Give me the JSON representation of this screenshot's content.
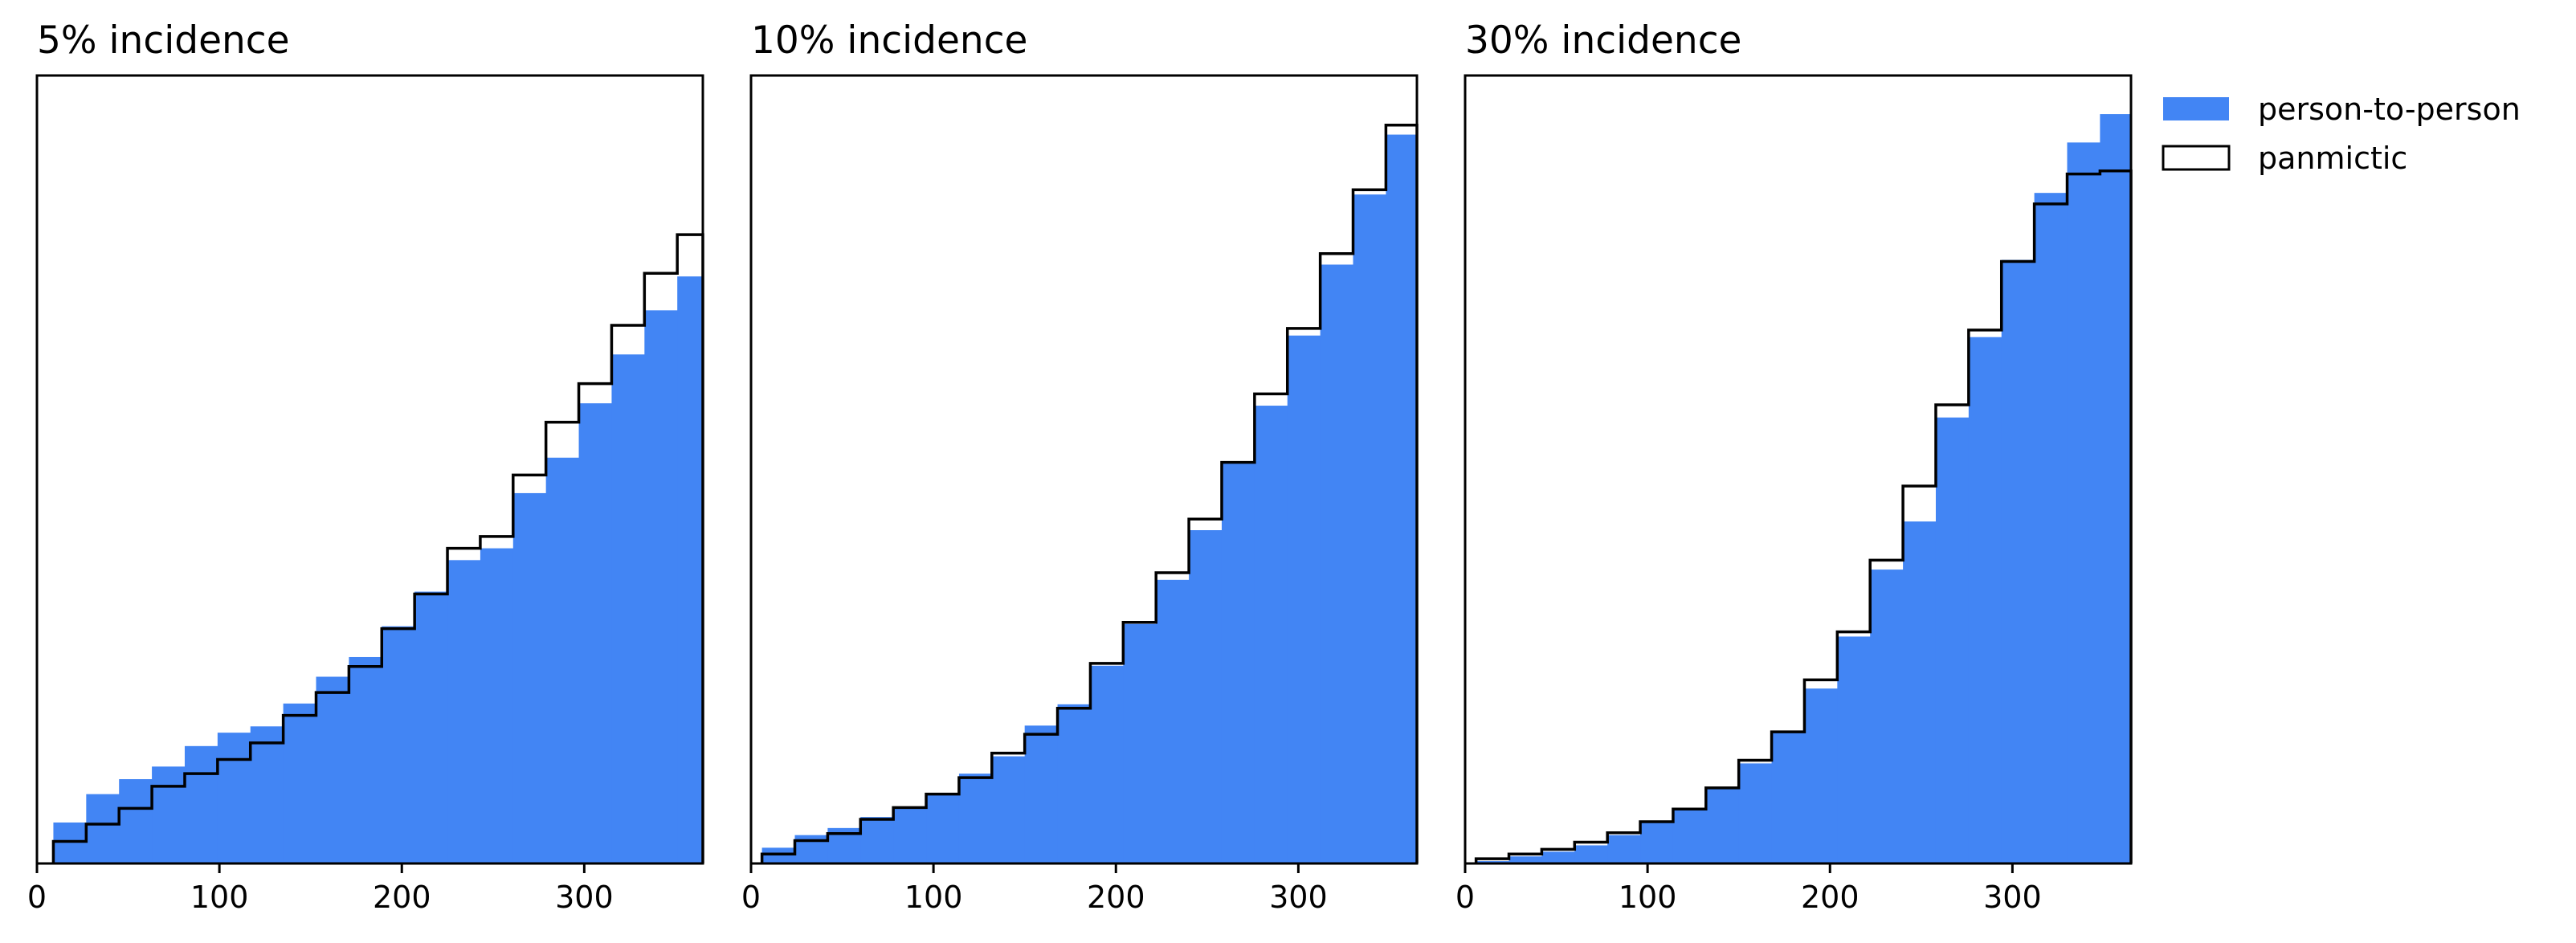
{
  "colors": {
    "fill_series": "#4285F4",
    "outline_series": "#000000",
    "background": "#FFFFFF"
  },
  "legend": {
    "placement": "top-right, outside the plots",
    "entries": [
      {
        "label": "person-to-person",
        "style": "filled",
        "color": "#4285F4"
      },
      {
        "label": "panmictic",
        "style": "step-outline",
        "color": "#000000"
      }
    ]
  },
  "chart_data": [
    {
      "type": "histogram",
      "title": "5% incidence",
      "xlabel": "",
      "ylabel": "",
      "xlim": [
        0,
        365
      ],
      "ylim": [
        0,
        100
      ],
      "xticks": [
        0,
        100,
        200,
        300
      ],
      "y_tick_labels_shown": false,
      "bin_edges": [
        9,
        27,
        45,
        63,
        81,
        99,
        117,
        135,
        153,
        171,
        189,
        207,
        225,
        243,
        261,
        279,
        297,
        315,
        333,
        351,
        365
      ],
      "series": [
        {
          "name": "person-to-person",
          "style": "filled",
          "values": [
            5.2,
            8.8,
            10.7,
            12.3,
            14.9,
            16.6,
            17.4,
            20.3,
            23.7,
            26.2,
            30.1,
            34.5,
            38.5,
            40.0,
            47.0,
            51.5,
            58.4,
            64.6,
            70.2,
            74.5
          ]
        },
        {
          "name": "panmictic",
          "style": "step",
          "values": [
            2.8,
            5.0,
            7.0,
            9.8,
            11.4,
            13.2,
            15.3,
            18.8,
            21.7,
            25.0,
            29.8,
            34.2,
            40.0,
            41.5,
            49.3,
            56.0,
            60.9,
            68.3,
            74.9,
            79.8
          ]
        }
      ]
    },
    {
      "type": "histogram",
      "title": "10% incidence",
      "xlabel": "",
      "ylabel": "",
      "xlim": [
        0,
        365
      ],
      "ylim": [
        0,
        100
      ],
      "xticks": [
        0,
        100,
        200,
        300
      ],
      "y_tick_labels_shown": false,
      "bin_edges": [
        6,
        24,
        42,
        60,
        78,
        96,
        114,
        132,
        150,
        168,
        186,
        204,
        222,
        240,
        258,
        276,
        294,
        312,
        330,
        348,
        365
      ],
      "series": [
        {
          "name": "person-to-person",
          "style": "filled",
          "values": [
            2.0,
            3.6,
            4.5,
            5.9,
            7.2,
            8.9,
            11.4,
            13.6,
            17.5,
            20.2,
            25.1,
            30.4,
            36.0,
            42.3,
            50.8,
            58.1,
            67.0,
            76.0,
            84.9,
            92.5
          ]
        },
        {
          "name": "panmictic",
          "style": "step",
          "values": [
            1.2,
            2.9,
            3.8,
            5.6,
            7.1,
            8.8,
            10.9,
            14.0,
            16.4,
            19.7,
            25.4,
            30.6,
            36.9,
            43.7,
            50.9,
            59.6,
            67.9,
            77.4,
            85.5,
            93.7
          ]
        }
      ]
    },
    {
      "type": "histogram",
      "title": "30% incidence",
      "xlabel": "",
      "ylabel": "",
      "xlim": [
        0,
        365
      ],
      "ylim": [
        0,
        100
      ],
      "xticks": [
        0,
        100,
        200,
        300
      ],
      "y_tick_labels_shown": false,
      "bin_edges": [
        6,
        24,
        42,
        60,
        78,
        96,
        114,
        132,
        150,
        168,
        186,
        204,
        222,
        240,
        258,
        276,
        294,
        312,
        330,
        348,
        365
      ],
      "series": [
        {
          "name": "person-to-person",
          "style": "filled",
          "values": [
            0.3,
            0.9,
            1.5,
            2.3,
            3.6,
            5.3,
            6.8,
            9.5,
            12.7,
            16.7,
            22.2,
            28.8,
            37.3,
            43.4,
            56.6,
            66.8,
            76.6,
            85.1,
            91.5,
            95.1
          ]
        },
        {
          "name": "panmictic",
          "style": "step",
          "values": [
            0.6,
            1.2,
            1.8,
            2.7,
            3.9,
            5.3,
            6.9,
            9.6,
            13.1,
            16.7,
            23.3,
            29.4,
            38.5,
            47.9,
            58.2,
            67.7,
            76.4,
            83.7,
            87.5,
            87.9
          ]
        }
      ]
    }
  ]
}
